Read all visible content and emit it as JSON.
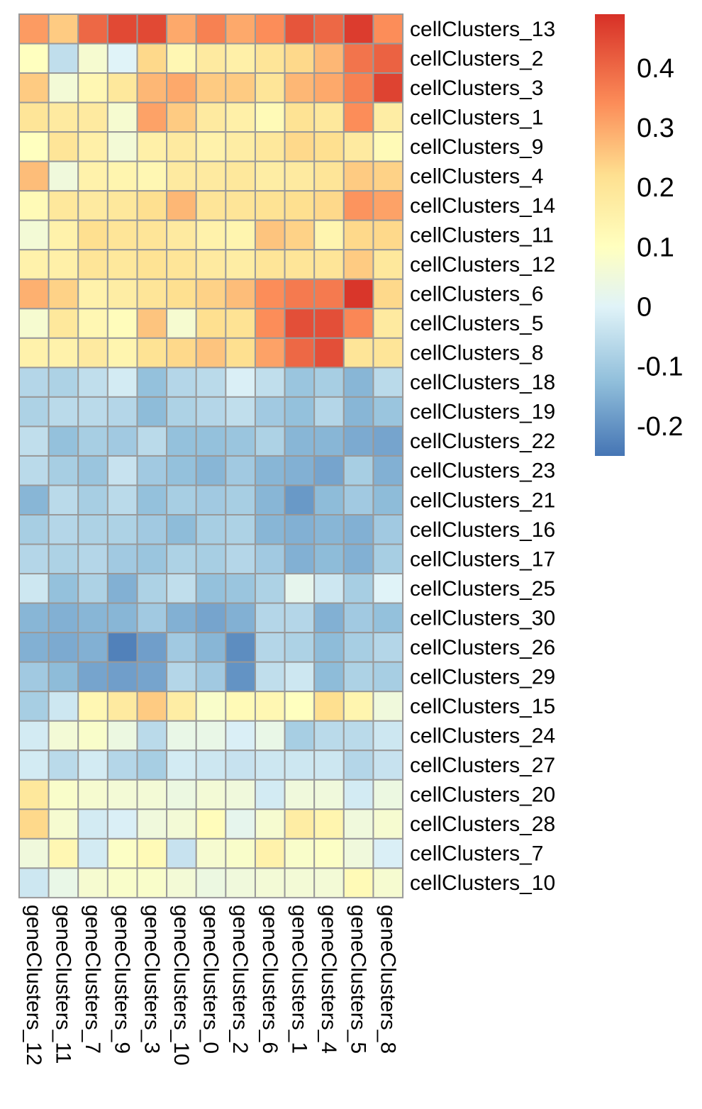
{
  "chart_data": {
    "type": "heatmap",
    "title": "",
    "rows": [
      "cellClusters_13",
      "cellClusters_2",
      "cellClusters_3",
      "cellClusters_1",
      "cellClusters_9",
      "cellClusters_4",
      "cellClusters_14",
      "cellClusters_11",
      "cellClusters_12",
      "cellClusters_6",
      "cellClusters_5",
      "cellClusters_8",
      "cellClusters_18",
      "cellClusters_19",
      "cellClusters_22",
      "cellClusters_23",
      "cellClusters_21",
      "cellClusters_16",
      "cellClusters_17",
      "cellClusters_25",
      "cellClusters_30",
      "cellClusters_26",
      "cellClusters_29",
      "cellClusters_15",
      "cellClusters_24",
      "cellClusters_27",
      "cellClusters_20",
      "cellClusters_28",
      "cellClusters_7",
      "cellClusters_10"
    ],
    "columns": [
      "geneClusters_12",
      "geneClusters_11",
      "geneClusters_7",
      "geneClusters_9",
      "geneClusters_3",
      "geneClusters_10",
      "geneClusters_0",
      "geneClusters_2",
      "geneClusters_6",
      "geneClusters_1",
      "geneClusters_4",
      "geneClusters_5",
      "geneClusters_8"
    ],
    "values": [
      [
        0.32,
        0.25,
        0.4,
        0.45,
        0.45,
        0.3,
        0.36,
        0.3,
        0.34,
        0.43,
        0.4,
        0.47,
        0.34
      ],
      [
        0.1,
        -0.05,
        0.07,
        0.0,
        0.23,
        0.13,
        0.18,
        0.16,
        0.2,
        0.23,
        0.28,
        0.38,
        0.41
      ],
      [
        0.25,
        0.06,
        0.13,
        0.19,
        0.28,
        0.3,
        0.25,
        0.25,
        0.2,
        0.28,
        0.3,
        0.36,
        0.46
      ],
      [
        0.2,
        0.18,
        0.18,
        0.07,
        0.31,
        0.25,
        0.18,
        0.16,
        0.12,
        0.21,
        0.19,
        0.34,
        0.17
      ],
      [
        0.1,
        0.2,
        0.16,
        0.06,
        0.16,
        0.18,
        0.15,
        0.17,
        0.19,
        0.23,
        0.22,
        0.18,
        0.12
      ],
      [
        0.27,
        0.05,
        0.15,
        0.14,
        0.13,
        0.18,
        0.18,
        0.19,
        0.17,
        0.18,
        0.2,
        0.25,
        0.24
      ],
      [
        0.12,
        0.19,
        0.18,
        0.19,
        0.22,
        0.28,
        0.2,
        0.2,
        0.21,
        0.22,
        0.23,
        0.33,
        0.31
      ],
      [
        0.06,
        0.15,
        0.22,
        0.2,
        0.2,
        0.18,
        0.15,
        0.14,
        0.26,
        0.24,
        0.14,
        0.23,
        0.23
      ],
      [
        0.15,
        0.16,
        0.2,
        0.19,
        0.21,
        0.2,
        0.18,
        0.17,
        0.2,
        0.2,
        0.2,
        0.25,
        0.19
      ],
      [
        0.29,
        0.24,
        0.15,
        0.17,
        0.2,
        0.22,
        0.24,
        0.27,
        0.34,
        0.37,
        0.37,
        0.48,
        0.23
      ],
      [
        0.07,
        0.19,
        0.13,
        0.11,
        0.26,
        0.07,
        0.22,
        0.21,
        0.34,
        0.44,
        0.44,
        0.35,
        0.18
      ],
      [
        0.15,
        0.15,
        0.18,
        0.14,
        0.21,
        0.23,
        0.26,
        0.22,
        0.31,
        0.4,
        0.44,
        0.2,
        0.2
      ],
      [
        -0.07,
        -0.08,
        -0.05,
        -0.02,
        -0.12,
        -0.07,
        -0.06,
        -0.01,
        -0.05,
        -0.11,
        -0.09,
        -0.14,
        -0.06
      ],
      [
        -0.08,
        -0.06,
        -0.06,
        -0.07,
        -0.13,
        -0.08,
        -0.07,
        -0.05,
        -0.1,
        -0.12,
        -0.07,
        -0.14,
        -0.11
      ],
      [
        -0.05,
        -0.12,
        -0.09,
        -0.1,
        -0.06,
        -0.12,
        -0.12,
        -0.11,
        -0.08,
        -0.14,
        -0.14,
        -0.16,
        -0.17
      ],
      [
        -0.06,
        -0.09,
        -0.11,
        -0.04,
        -0.1,
        -0.12,
        -0.14,
        -0.1,
        -0.14,
        -0.15,
        -0.17,
        -0.09,
        -0.15
      ],
      [
        -0.14,
        -0.06,
        -0.09,
        -0.06,
        -0.12,
        -0.09,
        -0.1,
        -0.09,
        -0.14,
        -0.19,
        -0.13,
        -0.1,
        -0.13
      ],
      [
        -0.09,
        -0.07,
        -0.08,
        -0.08,
        -0.1,
        -0.13,
        -0.09,
        -0.08,
        -0.14,
        -0.15,
        -0.14,
        -0.15,
        -0.1
      ],
      [
        -0.07,
        -0.08,
        -0.07,
        -0.1,
        -0.11,
        -0.08,
        -0.09,
        -0.07,
        -0.1,
        -0.15,
        -0.13,
        -0.15,
        -0.09
      ],
      [
        -0.03,
        -0.12,
        -0.08,
        -0.15,
        -0.08,
        -0.05,
        -0.12,
        -0.11,
        -0.08,
        0.02,
        -0.03,
        -0.09,
        0.0
      ],
      [
        -0.14,
        -0.15,
        -0.14,
        -0.14,
        -0.1,
        -0.15,
        -0.17,
        -0.15,
        -0.07,
        -0.07,
        -0.15,
        -0.1,
        -0.12
      ],
      [
        -0.15,
        -0.16,
        -0.15,
        -0.23,
        -0.18,
        -0.1,
        -0.14,
        -0.21,
        -0.07,
        -0.08,
        -0.13,
        -0.09,
        -0.07
      ],
      [
        -0.1,
        -0.13,
        -0.17,
        -0.18,
        -0.17,
        -0.07,
        -0.1,
        -0.2,
        -0.05,
        -0.03,
        -0.13,
        -0.08,
        -0.09
      ],
      [
        -0.09,
        -0.03,
        0.13,
        0.18,
        0.25,
        0.17,
        0.08,
        0.12,
        0.13,
        0.1,
        0.22,
        0.14,
        0.05
      ],
      [
        -0.02,
        0.06,
        0.08,
        0.04,
        -0.06,
        0.03,
        0.03,
        -0.01,
        0.03,
        -0.09,
        -0.06,
        -0.06,
        -0.03
      ],
      [
        -0.02,
        -0.06,
        -0.02,
        -0.07,
        -0.09,
        -0.02,
        -0.03,
        -0.04,
        -0.03,
        -0.03,
        -0.03,
        -0.07,
        -0.04
      ],
      [
        0.19,
        0.08,
        0.07,
        0.06,
        0.06,
        0.04,
        0.06,
        0.05,
        -0.02,
        0.05,
        0.05,
        -0.02,
        0.04
      ],
      [
        0.23,
        0.07,
        -0.02,
        -0.01,
        0.05,
        0.06,
        0.11,
        0.02,
        0.07,
        0.17,
        0.14,
        0.05,
        0.07
      ],
      [
        0.05,
        0.13,
        -0.02,
        0.09,
        0.12,
        -0.04,
        0.07,
        0.08,
        0.15,
        0.08,
        0.09,
        0.05,
        -0.01
      ],
      [
        -0.03,
        0.03,
        0.07,
        0.08,
        0.08,
        0.06,
        0.04,
        0.05,
        0.06,
        0.06,
        0.06,
        0.12,
        0.07
      ]
    ],
    "color_scale": {
      "min": -0.25,
      "max": 0.49,
      "stops": [
        {
          "v": -0.25,
          "color": "#4575b4"
        },
        {
          "v": -0.125,
          "color": "#91bfdb"
        },
        {
          "v": 0.0,
          "color": "#e0f3f8"
        },
        {
          "v": 0.1,
          "color": "#ffffbf"
        },
        {
          "v": 0.22,
          "color": "#fee090"
        },
        {
          "v": 0.34,
          "color": "#fc8d59"
        },
        {
          "v": 0.49,
          "color": "#d73027"
        }
      ]
    },
    "legend": {
      "ticks": [
        0.4,
        0.3,
        0.2,
        0.1,
        0,
        -0.1,
        -0.2
      ],
      "tick_labels": [
        "0.4",
        "0.3",
        "0.2",
        "0.1",
        "0",
        "-0.1",
        "-0.2"
      ]
    },
    "border_color": "#999999"
  }
}
